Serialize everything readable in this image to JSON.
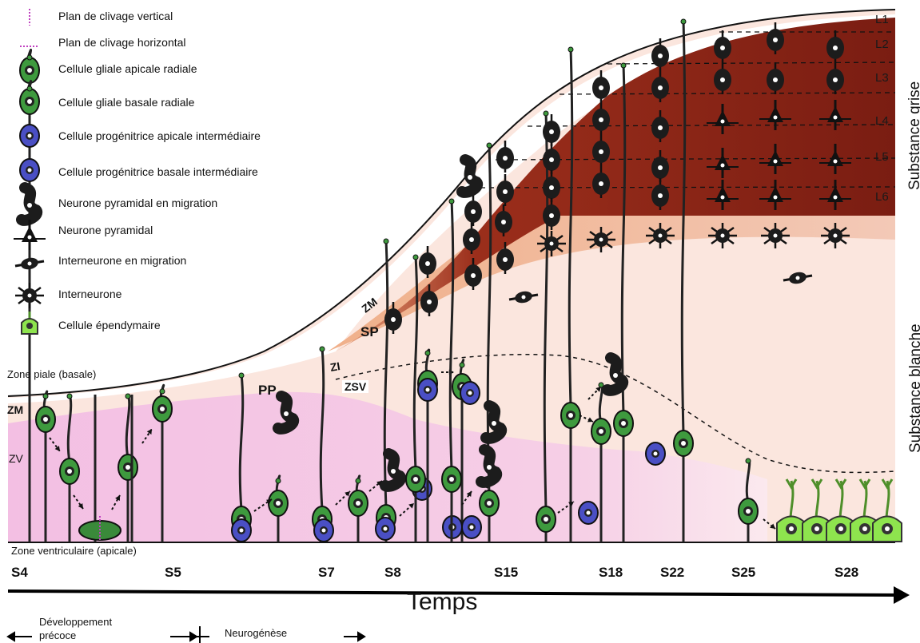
{
  "legend": [
    {
      "label": "Plan de clivage vertical",
      "icon": "vertical-cleavage-dotted-line"
    },
    {
      "label": "Plan de clivage horizontal",
      "icon": "horizontal-cleavage-dotted-line"
    },
    {
      "label": "Cellule gliale apicale radiale",
      "icon": "apical-radial-glia-icon"
    },
    {
      "label": "Cellule gliale basale radiale",
      "icon": "basal-radial-glia-icon"
    },
    {
      "label": "Cellule progénitrice apicale intermédiaire",
      "icon": "apical-intermediate-progenitor-icon"
    },
    {
      "label": "Cellule progénitrice basale intermédiaire",
      "icon": "basal-intermediate-progenitor-icon"
    },
    {
      "label": "Neurone pyramidal en migration",
      "icon": "migrating-pyramidal-neuron-icon"
    },
    {
      "label": "Neurone pyramidal",
      "icon": "pyramidal-neuron-icon"
    },
    {
      "label": "Interneurone en migration",
      "icon": "migrating-interneuron-icon"
    },
    {
      "label": "Interneurone",
      "icon": "interneuron-icon"
    },
    {
      "label": "Cellule épendymaire",
      "icon": "ependymal-cell-icon"
    }
  ],
  "zones": {
    "pial": "Zone piale (basale)",
    "ventricular": "Zone ventriculaire (apicale)",
    "zm_left": "ZM",
    "zv": "ZV",
    "pp": "PP",
    "zm_diag": "ZM",
    "sp": "SP",
    "zi": "ZI",
    "zsv": "ZSV"
  },
  "layers": [
    "L1",
    "L2",
    "L3",
    "L4",
    "L5",
    "L6"
  ],
  "side_labels": {
    "grey": "Substance grise",
    "white": "Substance blanche"
  },
  "stages": [
    "S4",
    "S5",
    "S7",
    "S8",
    "S15",
    "S18",
    "S22",
    "S25",
    "S28"
  ],
  "time_label": "Temps",
  "footer": {
    "early": "Développement\nprécoce",
    "early_1": "Développement",
    "early_2": "précoce",
    "neuro": "Neurogénèse"
  },
  "colors": {
    "rg_green": "#3e9a3e",
    "progenitor_blue": "#4a4fc4",
    "neuron_black": "#1c1c1c",
    "ependymal_green": "#8ee44e",
    "vz_pink": "#f4c3e4",
    "wm_beige": "#fbe3db",
    "cortex_dark": "#7a1d12",
    "cleavage_magenta": "#c040c0"
  }
}
